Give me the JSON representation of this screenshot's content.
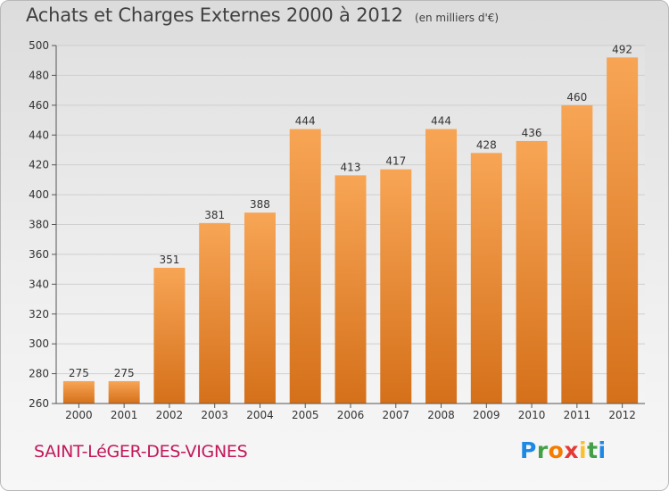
{
  "header": {
    "title": "Achats et Charges Externes 2000 à 2012",
    "subtitle": "(en milliers d'€)"
  },
  "footer": {
    "town": "SAINT-LéGER-DES-VIGNES",
    "logo_text": "Proxiti",
    "logo_colors": [
      "#1e88e5",
      "#43a047",
      "#f57c00",
      "#e53935",
      "#fbc02d",
      "#43a047",
      "#1e88e5"
    ]
  },
  "colors": {
    "bar_top": "#f7a555",
    "bar_bottom": "#d5701a",
    "grid": "#cfcfcf",
    "axis_text": "#333333"
  },
  "chart_data": {
    "type": "bar",
    "title": "Achats et Charges Externes 2000 à 2012",
    "subtitle": "(en milliers d'€)",
    "categories": [
      "2000",
      "2001",
      "2002",
      "2003",
      "2004",
      "2005",
      "2006",
      "2007",
      "2008",
      "2009",
      "2010",
      "2011",
      "2012"
    ],
    "values": [
      275,
      275,
      351,
      381,
      388,
      444,
      413,
      417,
      444,
      428,
      436,
      460,
      492
    ],
    "ylim": [
      260,
      500
    ],
    "yticks": [
      260,
      280,
      300,
      320,
      340,
      360,
      380,
      400,
      420,
      440,
      460,
      480,
      500
    ],
    "grid": true,
    "data_labels": true
  }
}
